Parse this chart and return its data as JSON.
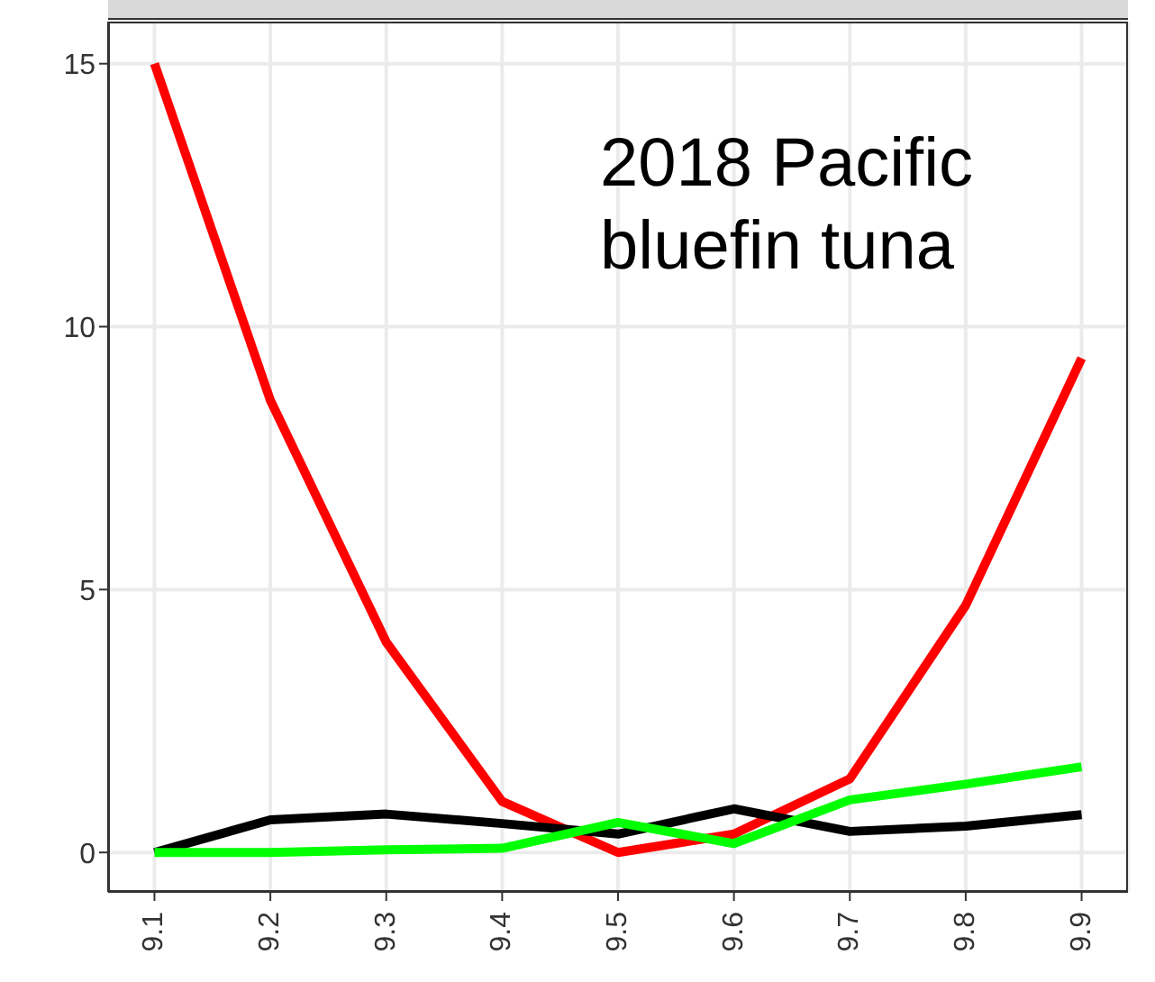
{
  "chart_data": {
    "type": "line",
    "annotations": [
      "2018 Pacific\nbluefin tuna"
    ],
    "x": [
      9.1,
      9.2,
      9.3,
      9.4,
      9.5,
      9.6,
      9.7,
      9.8,
      9.9
    ],
    "series": [
      {
        "color": "#ff0000",
        "values": [
          15.0,
          8.6,
          4.0,
          0.97,
          0.0,
          0.35,
          1.4,
          4.7,
          9.4
        ]
      },
      {
        "color": "#000000",
        "values": [
          0.0,
          0.62,
          0.73,
          0.55,
          0.35,
          0.83,
          0.4,
          0.5,
          0.72
        ]
      },
      {
        "color": "#00ff00",
        "values": [
          0.0,
          0.0,
          0.05,
          0.08,
          0.57,
          0.17,
          1.0,
          1.3,
          1.63
        ]
      }
    ],
    "xlim": [
      9.06,
      9.94
    ],
    "xticks": [
      9.1,
      9.2,
      9.3,
      9.4,
      9.5,
      9.6,
      9.7,
      9.8,
      9.9
    ],
    "ylim": [
      -0.75,
      15.8
    ],
    "yticks": [
      0,
      5,
      10,
      15
    ],
    "grid": true,
    "legend": false,
    "marker": "none",
    "line_style": "solid"
  }
}
